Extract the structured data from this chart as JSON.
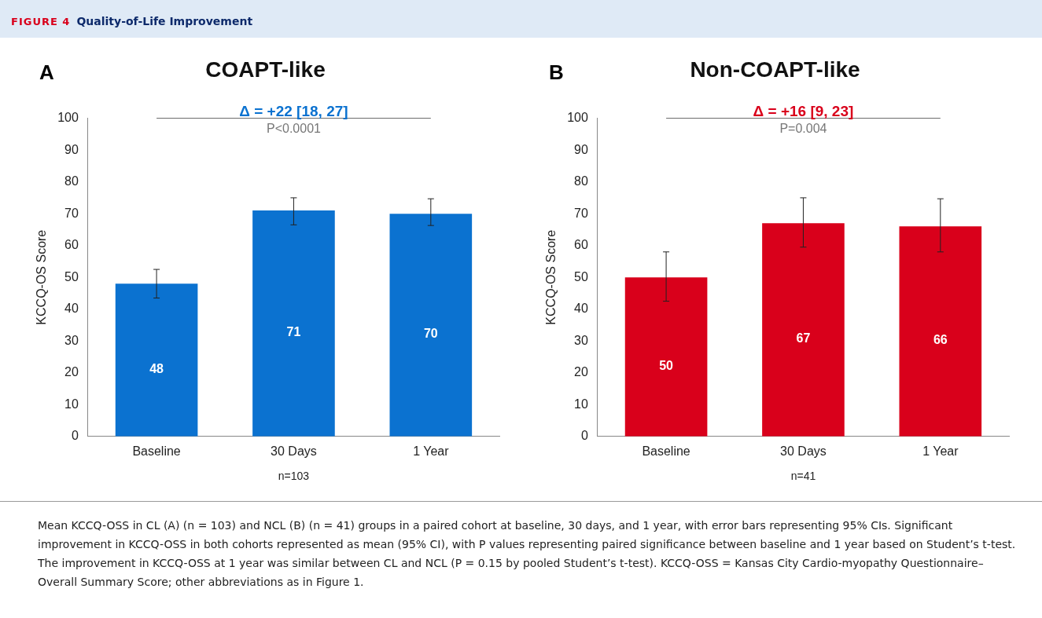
{
  "chart_data": [
    {
      "type": "bar",
      "title": "COAPT-like",
      "ylabel": "KCCQ-OS Score",
      "categories": [
        "Baseline",
        "30 Days",
        "1 Year"
      ],
      "series": [
        {
          "color": "#0b72d0",
          "values": [
            48,
            71,
            70
          ],
          "errors": [
            [
              43.5,
              52.5
            ],
            [
              66.5,
              75
            ],
            [
              66.3,
              74.7
            ]
          ]
        }
      ],
      "ylim": [
        0,
        100
      ],
      "yticks": [
        0,
        10,
        20,
        30,
        40,
        50,
        60,
        70,
        80,
        90,
        100
      ],
      "grid": false,
      "legend": false,
      "data_labels": true,
      "annotations": [
        "A",
        "Δ = +22 [18, 27]",
        "P<0.0001",
        "n=103",
        "FIGURE 4",
        "Quality-of-Life Improvement",
        "Mean KCCQ-OSS in CL (A) (n = 103) and NCL (B) (n = 41) groups in a paired cohort at baseline, 30 days, and 1 year, with error bars representing 95% CIs. Significant improvement in KCCQ-OSS in both cohorts represented as mean (95% CI), with P values representing paired significance between baseline and 1 year based on Student’s t-test. The improvement in KCCQ-OSS at 1 year was similar between CL and NCL (P = 0.15 by pooled Student’s t-test). KCCQ-OSS = Kansas City Cardio-myopathy Questionnaire–Overall Summary Score; other abbreviations as in Figure 1."
      ]
    },
    {
      "type": "bar",
      "title": "Non-COAPT-like",
      "ylabel": "KCCQ-OS Score",
      "categories": [
        "Baseline",
        "30 Days",
        "1 Year"
      ],
      "series": [
        {
          "color": "#d9001b",
          "values": [
            50,
            67,
            66
          ],
          "errors": [
            [
              42.5,
              58
            ],
            [
              59.5,
              75
            ],
            [
              58,
              74.7
            ]
          ]
        }
      ],
      "ylim": [
        0,
        100
      ],
      "yticks": [
        0,
        10,
        20,
        30,
        40,
        50,
        60,
        70,
        80,
        90,
        100
      ],
      "grid": false,
      "legend": false,
      "data_labels": true,
      "annotations": [
        "B",
        "Δ = +16 [9, 23]",
        "P=0.004",
        "n=41"
      ]
    }
  ]
}
